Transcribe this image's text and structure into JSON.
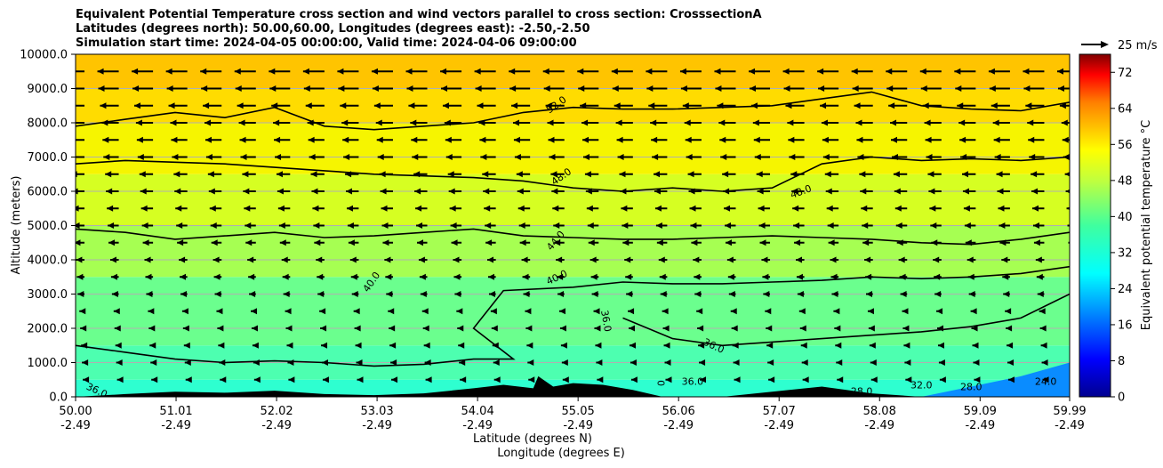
{
  "chart_data": {
    "type": "contourf",
    "title_lines": [
      "Equivalent Potential Temperature cross section and wind vectors parallel to cross section: CrosssectionA",
      "Latitudes (degrees north): 50.00,60.00, Longitudes (degrees east): -2.50,-2.50",
      "Simulation start time: 2024-04-05 00:00:00, Valid time: 2024-04-06 09:00:00"
    ],
    "xlabel_lat": "Latitude (degrees N)",
    "xlabel_lon": "Longitude (degrees E)",
    "ylabel": "Altitude (meters)",
    "xlim": [
      50.0,
      59.99
    ],
    "ylim": [
      0,
      10000
    ],
    "x_ticks": [
      {
        "value": 50.0,
        "lat": "50.00",
        "lon": "-2.49"
      },
      {
        "value": 51.01,
        "lat": "51.01",
        "lon": "-2.49"
      },
      {
        "value": 52.02,
        "lat": "52.02",
        "lon": "-2.49"
      },
      {
        "value": 53.03,
        "lat": "53.03",
        "lon": "-2.49"
      },
      {
        "value": 54.04,
        "lat": "54.04",
        "lon": "-2.49"
      },
      {
        "value": 55.05,
        "lat": "55.05",
        "lon": "-2.49"
      },
      {
        "value": 56.06,
        "lat": "56.06",
        "lon": "-2.49"
      },
      {
        "value": 57.07,
        "lat": "57.07",
        "lon": "-2.49"
      },
      {
        "value": 58.08,
        "lat": "58.08",
        "lon": "-2.49"
      },
      {
        "value": 59.09,
        "lat": "59.09",
        "lon": "-2.49"
      },
      {
        "value": 59.99,
        "lat": "59.99",
        "lon": "-2.49"
      }
    ],
    "y_ticks": [
      {
        "value": 0,
        "label": "0.0"
      },
      {
        "value": 1000,
        "label": "1000.0"
      },
      {
        "value": 2000,
        "label": "2000.0"
      },
      {
        "value": 3000,
        "label": "3000.0"
      },
      {
        "value": 4000,
        "label": "4000.0"
      },
      {
        "value": 5000,
        "label": "5000.0"
      },
      {
        "value": 6000,
        "label": "6000.0"
      },
      {
        "value": 7000,
        "label": "7000.0"
      },
      {
        "value": 8000,
        "label": "8000.0"
      },
      {
        "value": 9000,
        "label": "9000.0"
      },
      {
        "value": 10000,
        "label": "10000.0"
      }
    ],
    "colorbar": {
      "label": "Equivalent potential temperature °C",
      "min": 0,
      "max": 76,
      "ticks": [
        "0",
        "8",
        "16",
        "24",
        "32",
        "40",
        "48",
        "56",
        "64",
        "72"
      ],
      "tick_values": [
        0,
        8,
        16,
        24,
        32,
        40,
        48,
        56,
        64,
        72
      ]
    },
    "field_bands": [
      {
        "level": 36,
        "altitude_low": 0,
        "altitude_high": 500,
        "color": "#2effd0"
      },
      {
        "level": 38,
        "altitude_low": 500,
        "altitude_high": 1500,
        "color": "#4dffb0"
      },
      {
        "level": 40,
        "altitude_low": 1500,
        "altitude_high": 3500,
        "color": "#6bff8e"
      },
      {
        "level": 43,
        "altitude_low": 3500,
        "altitude_high": 5000,
        "color": "#a6ff52"
      },
      {
        "level": 46,
        "altitude_low": 5000,
        "altitude_high": 6500,
        "color": "#d6ff22"
      },
      {
        "level": 49,
        "altitude_low": 6500,
        "altitude_high": 8000,
        "color": "#f6f500"
      },
      {
        "level": 52,
        "altitude_low": 8000,
        "altitude_high": 9000,
        "color": "#ffdc00"
      },
      {
        "level": 55,
        "altitude_low": 9000,
        "altitude_high": 10000,
        "color": "#ffc400"
      }
    ],
    "contours": [
      {
        "level": 52,
        "label": "52.0",
        "points": [
          [
            50.0,
            7900
          ],
          [
            50.5,
            8100
          ],
          [
            51.0,
            8300
          ],
          [
            51.5,
            8150
          ],
          [
            52.0,
            8450
          ],
          [
            52.5,
            7900
          ],
          [
            53.0,
            7800
          ],
          [
            53.5,
            7900
          ],
          [
            54.0,
            8000
          ],
          [
            54.5,
            8300
          ],
          [
            55.0,
            8450
          ],
          [
            55.5,
            8400
          ],
          [
            56.0,
            8400
          ],
          [
            56.5,
            8450
          ],
          [
            57.0,
            8500
          ],
          [
            57.5,
            8700
          ],
          [
            58.0,
            8900
          ],
          [
            58.5,
            8500
          ],
          [
            59.0,
            8400
          ],
          [
            59.5,
            8350
          ],
          [
            59.99,
            8600
          ]
        ]
      },
      {
        "level": 48,
        "label": "48.0",
        "points": [
          [
            50.0,
            6800
          ],
          [
            50.5,
            6900
          ],
          [
            51.0,
            6850
          ],
          [
            51.5,
            6800
          ],
          [
            52.0,
            6700
          ],
          [
            52.5,
            6600
          ],
          [
            53.0,
            6500
          ],
          [
            53.5,
            6450
          ],
          [
            54.0,
            6400
          ],
          [
            54.5,
            6300
          ],
          [
            55.0,
            6100
          ],
          [
            55.5,
            6000
          ],
          [
            56.0,
            6100
          ],
          [
            56.5,
            6000
          ],
          [
            57.0,
            6100
          ],
          [
            57.5,
            6800
          ],
          [
            58.0,
            7000
          ],
          [
            58.5,
            6900
          ],
          [
            59.0,
            6950
          ],
          [
            59.5,
            6900
          ],
          [
            59.99,
            7000
          ]
        ]
      },
      {
        "level": 44,
        "label": "44.0",
        "points": [
          [
            50.0,
            4900
          ],
          [
            50.5,
            4800
          ],
          [
            51.0,
            4600
          ],
          [
            51.5,
            4700
          ],
          [
            52.0,
            4800
          ],
          [
            52.5,
            4650
          ],
          [
            53.0,
            4700
          ],
          [
            53.5,
            4800
          ],
          [
            54.0,
            4900
          ],
          [
            54.5,
            4700
          ],
          [
            55.0,
            4650
          ],
          [
            55.5,
            4600
          ],
          [
            56.0,
            4600
          ],
          [
            56.5,
            4650
          ],
          [
            57.0,
            4700
          ],
          [
            57.5,
            4650
          ],
          [
            58.0,
            4600
          ],
          [
            58.5,
            4500
          ],
          [
            59.0,
            4450
          ],
          [
            59.5,
            4600
          ],
          [
            59.99,
            4800
          ]
        ]
      },
      {
        "level": 40,
        "label": "40.0",
        "points": [
          [
            50.0,
            1500
          ],
          [
            50.5,
            1300
          ],
          [
            51.0,
            1100
          ],
          [
            51.5,
            1000
          ],
          [
            52.0,
            1050
          ],
          [
            52.5,
            1000
          ],
          [
            53.0,
            900
          ],
          [
            53.5,
            950
          ],
          [
            54.0,
            1100
          ],
          [
            54.4,
            1100
          ],
          [
            54.0,
            2000
          ],
          [
            54.3,
            3100
          ],
          [
            55.0,
            3200
          ],
          [
            55.5,
            3350
          ],
          [
            56.0,
            3300
          ],
          [
            56.5,
            3300
          ],
          [
            57.0,
            3350
          ],
          [
            57.5,
            3400
          ],
          [
            58.0,
            3500
          ],
          [
            58.5,
            3450
          ],
          [
            59.0,
            3500
          ],
          [
            59.5,
            3600
          ],
          [
            59.99,
            3800
          ]
        ]
      },
      {
        "level": 36,
        "label": "36.0",
        "points": [
          [
            55.5,
            2300
          ],
          [
            56.0,
            1700
          ],
          [
            56.5,
            1500
          ],
          [
            57.0,
            1600
          ],
          [
            57.5,
            1700
          ],
          [
            58.0,
            1800
          ],
          [
            58.5,
            1900
          ],
          [
            59.0,
            2050
          ],
          [
            59.5,
            2300
          ],
          [
            59.99,
            3000
          ]
        ]
      }
    ],
    "contour_labels": [
      {
        "text": "52.0",
        "lat": 54.85,
        "alt": 8450,
        "angle": -35
      },
      {
        "text": "48.0",
        "lat": 54.9,
        "alt": 6350,
        "angle": -35
      },
      {
        "text": "48.0",
        "lat": 57.3,
        "alt": 5900,
        "angle": -20
      },
      {
        "text": "44.0",
        "lat": 54.85,
        "alt": 4500,
        "angle": -50
      },
      {
        "text": "40.0",
        "lat": 53.0,
        "alt": 3300,
        "angle": -55
      },
      {
        "text": "40.0",
        "lat": 54.85,
        "alt": 3400,
        "angle": -25
      },
      {
        "text": "36.0",
        "lat": 55.3,
        "alt": 2200,
        "angle": 80
      },
      {
        "text": "36.0",
        "lat": 56.4,
        "alt": 1400,
        "angle": 25
      },
      {
        "text": "36.0",
        "lat": 50.2,
        "alt": 100,
        "angle": 25
      },
      {
        "text": "36.0",
        "lat": 56.2,
        "alt": 350,
        "angle": 0
      },
      {
        "text": "32.0",
        "lat": 58.5,
        "alt": 250,
        "angle": 0
      },
      {
        "text": "28.0",
        "lat": 59.0,
        "alt": 200,
        "angle": 0
      },
      {
        "text": "28.0",
        "lat": 57.9,
        "alt": 60,
        "angle": 0
      },
      {
        "text": "24.0",
        "lat": 59.75,
        "alt": 350,
        "angle": 0
      },
      {
        "text": "0",
        "lat": 55.85,
        "alt": 400,
        "angle": 90
      }
    ],
    "terrain": [
      [
        50.0,
        0
      ],
      [
        50.5,
        80
      ],
      [
        51.0,
        150
      ],
      [
        51.5,
        120
      ],
      [
        52.0,
        180
      ],
      [
        52.5,
        80
      ],
      [
        53.0,
        50
      ],
      [
        53.5,
        100
      ],
      [
        54.0,
        250
      ],
      [
        54.3,
        350
      ],
      [
        54.6,
        250
      ],
      [
        54.65,
        600
      ],
      [
        54.8,
        300
      ],
      [
        55.0,
        400
      ],
      [
        55.3,
        350
      ],
      [
        55.6,
        200
      ],
      [
        55.9,
        0
      ],
      [
        56.5,
        0
      ],
      [
        57.0,
        150
      ],
      [
        57.5,
        300
      ],
      [
        58.0,
        100
      ],
      [
        58.5,
        0
      ],
      [
        59.99,
        0
      ]
    ],
    "cold_region": [
      [
        58.5,
        0
      ],
      [
        59.0,
        300
      ],
      [
        59.5,
        600
      ],
      [
        59.99,
        1000
      ],
      [
        59.99,
        0
      ]
    ],
    "wind_vectors": {
      "reference_label": "25 m/s",
      "reference_speed": 25,
      "altitudes": [
        9500,
        9000,
        8500,
        8000,
        7500,
        7000,
        6500,
        6000,
        5500,
        5000,
        4500,
        4000,
        3500,
        3000,
        2500,
        2000,
        1500,
        1000,
        500
      ],
      "speeds": [
        -25,
        -24,
        -22,
        -20,
        -19,
        -18,
        -16,
        -15,
        -14,
        -13,
        -12,
        -10,
        -9,
        -8,
        -6,
        -5,
        -4,
        -3,
        -2
      ]
    },
    "gridlines": "horizontal"
  }
}
